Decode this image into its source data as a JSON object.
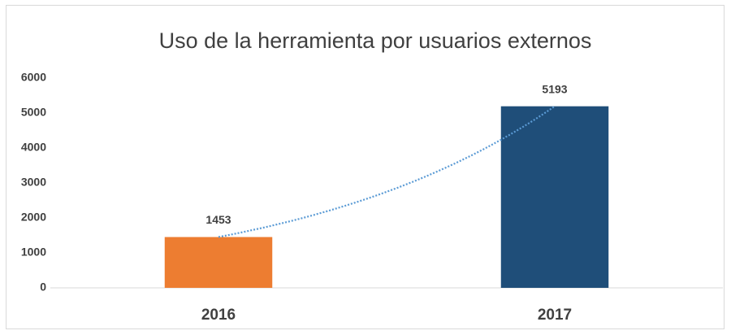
{
  "chart_data": {
    "type": "bar",
    "title": "Uso de la herramienta por usuarios externos",
    "categories": [
      "2016",
      "2017"
    ],
    "values": [
      1453,
      5193
    ],
    "colors": [
      "#ed7d31",
      "#1f4e79"
    ],
    "ylim": [
      0,
      6000
    ],
    "yticks": [
      0,
      1000,
      2000,
      3000,
      4000,
      5000,
      6000
    ],
    "grid": false,
    "trendline": {
      "type": "exponential",
      "color": "#5b9bd5"
    }
  }
}
